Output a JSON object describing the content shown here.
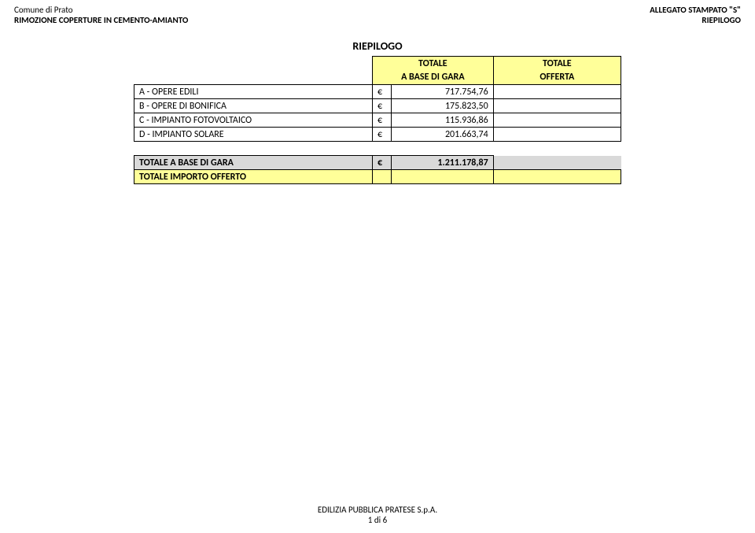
{
  "header": {
    "left1": "Comune di Prato",
    "left2": "RIMOZIONE COPERTURE IN CEMENTO-AMIANTO",
    "right1": "ALLEGATO STAMPATO \"S\"",
    "right2": "RIEPILOGO"
  },
  "title": "RIEPILOGO",
  "columns": {
    "base_l1": "TOTALE",
    "base_l2": "A BASE DI GARA",
    "offer_l1": "TOTALE",
    "offer_l2": "OFFERTA"
  },
  "currency": "€",
  "rows": [
    {
      "label": "A - OPERE EDILI",
      "value": "717.754,76"
    },
    {
      "label": "B - OPERE DI BONIFICA",
      "value": "175.823,50"
    },
    {
      "label": "C - IMPIANTO FOTOVOLTAICO",
      "value": "115.936,86"
    },
    {
      "label": "D - IMPIANTO SOLARE",
      "value": "201.663,74"
    }
  ],
  "totals": {
    "base_label": "TOTALE A BASE DI GARA",
    "base_value": "1.211.178,87",
    "offer_label": "TOTALE IMPORTO OFFERTO"
  },
  "footer": {
    "line1": "EDILIZIA PUBBLICA PRATESE S.p.A.",
    "line2": "1 di 6"
  },
  "colors": {
    "highlight": "#ffff99",
    "grey": "#d9d9d9",
    "border": "#000000",
    "background": "#ffffff"
  }
}
